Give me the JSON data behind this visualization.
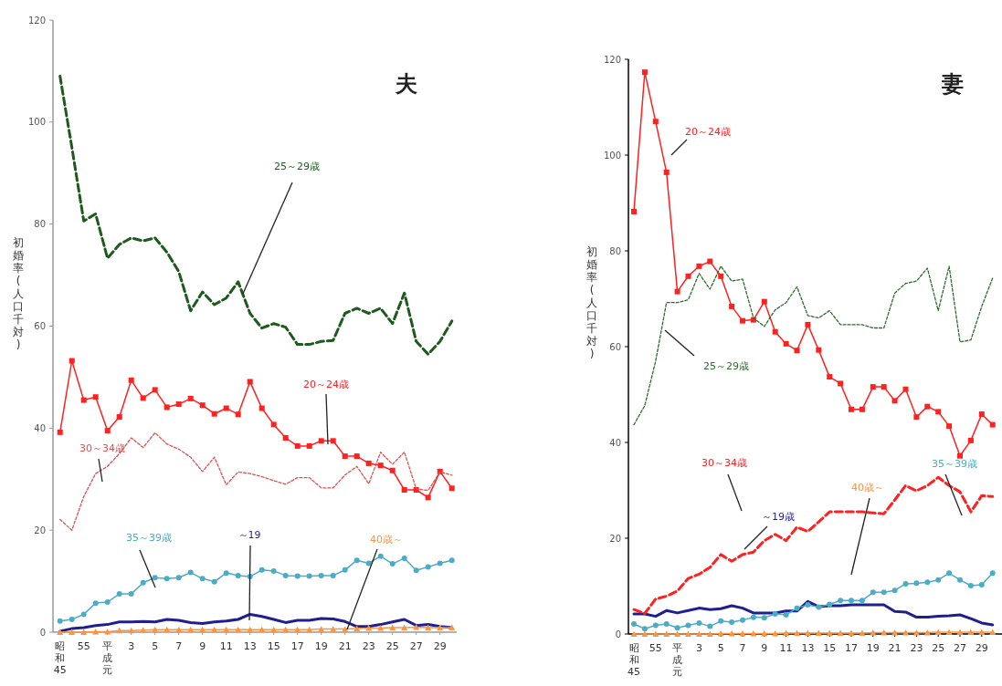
{
  "chart_data": [
    {
      "type": "line",
      "title": "夫",
      "ylabel": "初婚率(人口千対)",
      "ylim": [
        0,
        120
      ],
      "yticks": [
        0,
        20,
        40,
        60,
        80,
        100,
        120
      ],
      "categories": [
        "昭和45",
        null,
        "55",
        null,
        "平成元",
        null,
        "3",
        null,
        "5",
        null,
        "7",
        null,
        "9",
        null,
        "11",
        null,
        "13",
        null,
        "15",
        null,
        "17",
        null,
        "19",
        null,
        "21",
        null,
        "23",
        null,
        "25",
        null,
        "27",
        null,
        "29",
        null
      ],
      "series": [
        {
          "name": "～19",
          "color": "#1f1f8f",
          "marker": "none",
          "line_style": "solid",
          "values": [
            0.2,
            0.7,
            0.9,
            1.3,
            1.5,
            2,
            2,
            2.1,
            2,
            2.5,
            2.3,
            1.9,
            1.7,
            2,
            2.2,
            2.5,
            3.5,
            3.1,
            2.5,
            1.9,
            2.3,
            2.3,
            2.7,
            2.6,
            2.1,
            1.1,
            1.1,
            1.5,
            2,
            2.5,
            1.3,
            1.5,
            1.1,
            0.9
          ]
        },
        {
          "name": "20～24歳",
          "color": "#ff2020",
          "marker": "square",
          "line_style": "solid",
          "values": [
            39.2,
            53.2,
            45.5,
            46.1,
            39.5,
            42.2,
            49.4,
            45.9,
            47.5,
            44.1,
            44.7,
            45.8,
            44.5,
            42.8,
            43.9,
            42.7,
            49.1,
            43.9,
            40.7,
            38.1,
            36.5,
            36.5,
            37.5,
            37.5,
            34.5,
            34.5,
            33.1,
            32.7,
            31.7,
            27.9,
            27.9,
            26.4,
            31.5,
            28.2
          ]
        },
        {
          "name": "25～29歳",
          "color": "#1e5a1e",
          "marker": "none",
          "line_style": "dashed",
          "values": [
            109,
            95,
            80.6,
            82,
            73.3,
            76,
            77.3,
            76.7,
            77.3,
            74.5,
            70.7,
            63,
            66.7,
            64.2,
            65.5,
            68.7,
            62.5,
            59.6,
            60.5,
            59.8,
            56.4,
            56.4,
            57,
            57.2,
            62.5,
            63.5,
            62.5,
            63.5,
            60.5,
            66.5,
            57,
            54.5,
            57,
            61
          ]
        },
        {
          "name": "30～34歳",
          "color": "#e05050",
          "marker": "none",
          "line_style": "dotted",
          "values": [
            22.1,
            20,
            26.6,
            31.1,
            32.5,
            35,
            38.1,
            36.2,
            39.1,
            36.9,
            35.9,
            34.3,
            31.5,
            34.3,
            28.9,
            31.4,
            31.1,
            30.5,
            29.7,
            29,
            30.3,
            30.3,
            28.3,
            28.3,
            30.8,
            32.5,
            29.1,
            35.3,
            32.9,
            35.3,
            28.1,
            27.8,
            31.4,
            30.8
          ]
        },
        {
          "name": "35～39歳",
          "color": "#4bacc6",
          "marker": "circle",
          "line_style": "solid",
          "values": [
            2.2,
            2.5,
            3.5,
            5.7,
            5.9,
            7.5,
            7.5,
            9.7,
            10.7,
            10.5,
            10.7,
            11.7,
            10.5,
            9.9,
            11.6,
            11.1,
            10.9,
            12.2,
            12,
            11.1,
            11,
            11,
            11.1,
            11.1,
            12.2,
            14.1,
            13.5,
            14.9,
            13.4,
            14.5,
            12.1,
            12.8,
            13.5,
            14.1
          ]
        },
        {
          "name": "40歳～",
          "color": "#f79646",
          "marker": "triangle",
          "line_style": "solid",
          "values": [
            0,
            0,
            0,
            0.1,
            0.1,
            0.3,
            0.3,
            0.4,
            0.5,
            0.5,
            0.5,
            0.5,
            0.5,
            0.5,
            0.5,
            0.5,
            0.5,
            0.5,
            0.5,
            0.5,
            0.5,
            0.5,
            0.6,
            0.6,
            0.6,
            0.7,
            0.8,
            0.8,
            0.9,
            0.9,
            1,
            0.9,
            0.9,
            0.9
          ]
        }
      ]
    },
    {
      "type": "line",
      "title": "妻",
      "ylabel": "初婚率(人口千対)",
      "ylim": [
        0,
        120
      ],
      "yticks": [
        0,
        20,
        40,
        60,
        80,
        100,
        120
      ],
      "categories": [
        "昭和45",
        null,
        "55",
        null,
        "平成元",
        null,
        "3",
        null,
        "5",
        null,
        "7",
        null,
        "9",
        null,
        "11",
        null,
        "13",
        null,
        "15",
        null,
        "17",
        null,
        "19",
        null,
        "21",
        null,
        "23",
        null,
        "25",
        null,
        "27",
        null,
        "29",
        null
      ],
      "series": [
        {
          "name": "～19歳",
          "color": "#1f1f8f",
          "marker": "none",
          "line_style": "solid",
          "values": [
            4.2,
            4.2,
            3.7,
            4.9,
            4.4,
            4.9,
            5.4,
            5.1,
            5.3,
            5.9,
            5.4,
            4.4,
            4.4,
            4.4,
            4.8,
            4.8,
            6.8,
            5.7,
            5.9,
            5.9,
            6.1,
            6.1,
            6.1,
            6.1,
            4.7,
            4.6,
            3.5,
            3.5,
            3.7,
            3.8,
            4,
            3.2,
            2.3,
            1.9
          ]
        },
        {
          "name": "20～24歳",
          "color": "#ff2020",
          "marker": "square",
          "line_style": "solid",
          "values": [
            88.2,
            117.3,
            107,
            96.4,
            71.5,
            74.7,
            76.8,
            77.8,
            74.7,
            68.4,
            65.4,
            65.6,
            69.4,
            63.1,
            60.6,
            59.2,
            64.6,
            59.3,
            53.7,
            52.3,
            46.9,
            46.9,
            51.6,
            51.6,
            48.7,
            51.1,
            45.3,
            47.5,
            46.4,
            43.4,
            37.2,
            40.4,
            45.9,
            43.7
          ]
        },
        {
          "name": "25～29歳",
          "color": "#2e6b2e",
          "marker": "none",
          "line_style": "dotted",
          "values": [
            43.7,
            47.7,
            57,
            69.2,
            69.2,
            69.8,
            75.3,
            72,
            76.8,
            73.7,
            74.1,
            66,
            64.2,
            67.7,
            69.2,
            72.5,
            66.5,
            66,
            67.5,
            64.6,
            64.6,
            64.6,
            63.9,
            63.9,
            71.2,
            73.2,
            73.7,
            76.4,
            67.5,
            76.8,
            61,
            61.4,
            68.4,
            74.3
          ]
        },
        {
          "name": "30～34歳",
          "color": "#ff2020",
          "marker": "none",
          "line_style": "dashed",
          "values": [
            5.1,
            4.3,
            7.3,
            7.9,
            9,
            11.6,
            12.5,
            13.9,
            16.6,
            15.2,
            16.6,
            17.1,
            19.5,
            20.8,
            19.5,
            22.3,
            21.4,
            23.4,
            25.5,
            25.5,
            25.5,
            25.5,
            25.3,
            25.1,
            28,
            31,
            29.9,
            31,
            32.7,
            31,
            29.7,
            25.5,
            28.9,
            28.7
          ]
        },
        {
          "name": "35～39歳",
          "color": "#4bacc6",
          "marker": "circle",
          "line_style": "solid",
          "values": [
            2.1,
            1.1,
            1.8,
            2.1,
            1.3,
            1.8,
            2.3,
            1.6,
            2.7,
            2.5,
            2.9,
            3.5,
            3.4,
            4.2,
            4,
            5.4,
            6.1,
            5.6,
            6.2,
            7,
            7,
            7,
            8.7,
            8.7,
            9.1,
            10.5,
            10.6,
            10.8,
            11.3,
            12.7,
            11.3,
            10.1,
            10.3,
            12.7
          ]
        },
        {
          "name": "40歳～",
          "color": "#f79646",
          "marker": "triangle",
          "line_style": "solid",
          "values": [
            0,
            0,
            0,
            0,
            0,
            0,
            0,
            0,
            0.1,
            0.1,
            0.1,
            0.1,
            0.1,
            0.1,
            0.2,
            0.2,
            0.2,
            0.2,
            0.2,
            0.2,
            0.2,
            0.2,
            0.3,
            0.3,
            0.3,
            0.3,
            0.3,
            0.3,
            0.4,
            0.4,
            0.4,
            0.4,
            0.4,
            0.4
          ]
        }
      ]
    }
  ]
}
